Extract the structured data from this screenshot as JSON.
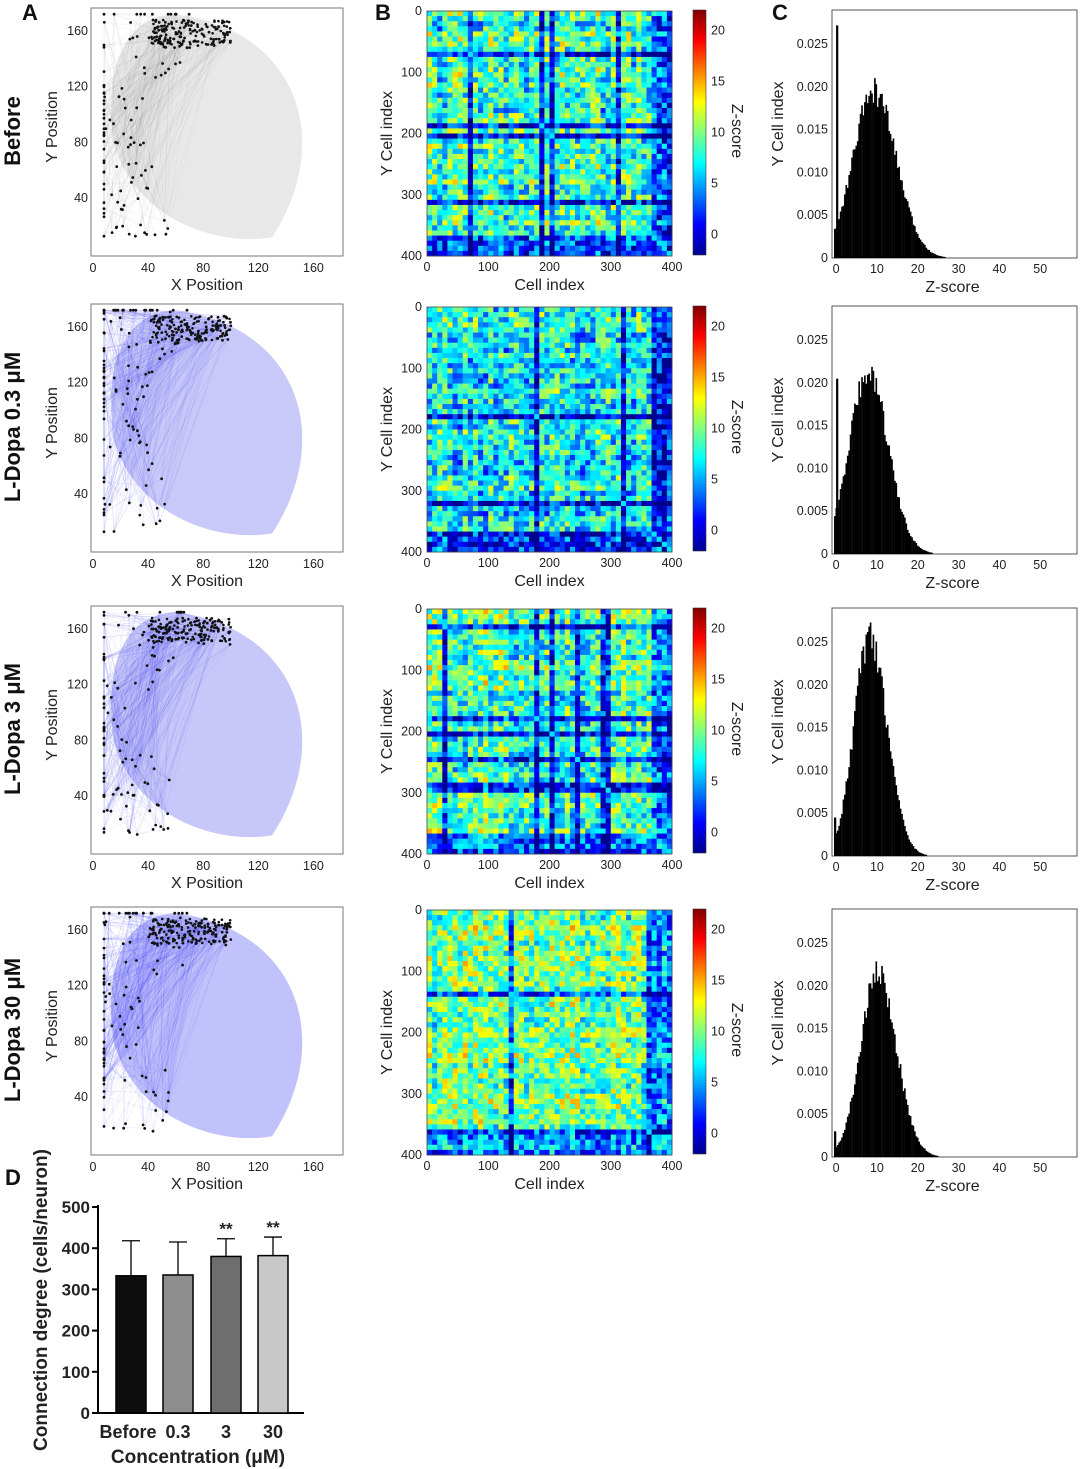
{
  "panel_letters": {
    "A": "A",
    "B": "B",
    "C": "C",
    "D": "D"
  },
  "rows": [
    {
      "label": "Before",
      "color": "#808080"
    },
    {
      "label": "L-Dopa 0.3 μM",
      "color": "#3a3ae8"
    },
    {
      "label": "L-Dopa 3 μM",
      "color": "#3636ea"
    },
    {
      "label": "L-Dopa 30 μM",
      "color": "#2020f0"
    }
  ],
  "panelA": {
    "xlabel": "X Position",
    "ylabel": "Y Position",
    "xticks": [
      0,
      40,
      80,
      120,
      160
    ],
    "yticks": [
      40,
      80,
      120,
      160
    ],
    "xlim": [
      0,
      180
    ],
    "ylim": [
      0,
      175
    ]
  },
  "panelB": {
    "xlabel": "Cell index",
    "ylabel": "Y Cell index",
    "xticks": [
      0,
      100,
      200,
      300,
      400
    ],
    "yticks": [
      0,
      100,
      200,
      300,
      400
    ],
    "colorbar_label": "Z-score",
    "colorbar_ticks": [
      0,
      5,
      10,
      15,
      20
    ]
  },
  "panelC": {
    "xlabel": "Z-score",
    "ylabel": "Y Cell index",
    "xticks": [
      0,
      10,
      20,
      30,
      40,
      50
    ],
    "yticks": [
      "0",
      "0.005",
      "0.010",
      "0.015",
      "0.020",
      "0.025"
    ]
  },
  "chart_data": [
    {
      "type": "histogram",
      "name": "Before",
      "title": "",
      "xlabel": "Z-score",
      "ylabel": "Y Cell index",
      "xlim": [
        -1,
        59
      ],
      "ylim": [
        0,
        0.029
      ],
      "distribution": {
        "peak_x": 9,
        "peak_density": 0.0195,
        "sd_left": 5.0,
        "sd_right": 5.5
      },
      "spike": {
        "x": 0,
        "density": 0.0272
      }
    },
    {
      "type": "histogram",
      "name": "L-Dopa 0.3 μM",
      "title": "",
      "xlabel": "Z-score",
      "ylabel": "Y Cell index",
      "xlim": [
        -1,
        59
      ],
      "ylim": [
        0,
        0.029
      ],
      "distribution": {
        "peak_x": 7.5,
        "peak_density": 0.0213,
        "sd_left": 4.5,
        "sd_right": 5.0
      },
      "spike": {
        "x": 0,
        "density": 0.0205
      }
    },
    {
      "type": "histogram",
      "name": "L-Dopa 3 μM",
      "title": "",
      "xlabel": "Z-score",
      "ylabel": "Y Cell index",
      "xlim": [
        -1,
        59
      ],
      "ylim": [
        0,
        0.029
      ],
      "distribution": {
        "peak_x": 8,
        "peak_density": 0.0255,
        "sd_left": 3.8,
        "sd_right": 4.3
      },
      "spike": {
        "x": -0.5,
        "density": 0.0045
      }
    },
    {
      "type": "histogram",
      "name": "L-Dopa 30 μM",
      "title": "",
      "xlabel": "Z-score",
      "ylabel": "Y Cell index",
      "xlim": [
        -1,
        59
      ],
      "ylim": [
        0,
        0.029
      ],
      "distribution": {
        "peak_x": 10,
        "peak_density": 0.0213,
        "sd_left": 4.2,
        "sd_right": 4.6
      },
      "spike": {
        "x": -0.5,
        "density": 0.003
      }
    },
    {
      "type": "bar",
      "name": "Connection degree",
      "title": "",
      "xlabel": "Concentration (μM)",
      "ylabel": "Connection degree (cells/neuron)",
      "categories": [
        "Before",
        "0.3",
        "3",
        "30"
      ],
      "values": [
        333,
        335,
        380,
        382
      ],
      "errors": [
        85,
        80,
        43,
        45
      ],
      "significance": [
        "",
        "",
        "**",
        "**"
      ],
      "bar_colors": [
        "#0d0d0d",
        "#8e8e8e",
        "#6e6e6e",
        "#c8c8c8"
      ],
      "yticks": [
        0,
        100,
        200,
        300,
        400,
        500
      ],
      "ylim": [
        0,
        500
      ]
    }
  ]
}
